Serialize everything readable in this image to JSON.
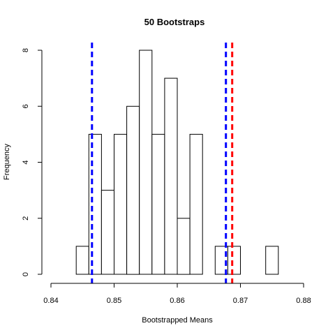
{
  "chart_data": {
    "type": "histogram",
    "title": "50 Bootstraps",
    "xlabel": "Bootstrapped Means",
    "ylabel": "Frequency",
    "xlim": [
      0.84,
      0.88
    ],
    "ylim": [
      0,
      8
    ],
    "x_ticks": [
      "0.84",
      "0.85",
      "0.86",
      "0.87",
      "0.88"
    ],
    "y_ticks": [
      "0",
      "2",
      "4",
      "6",
      "8"
    ],
    "bin_width": 0.002,
    "bins": [
      {
        "start": 0.844,
        "end": 0.846,
        "count": 1
      },
      {
        "start": 0.846,
        "end": 0.848,
        "count": 5
      },
      {
        "start": 0.848,
        "end": 0.85,
        "count": 3
      },
      {
        "start": 0.85,
        "end": 0.852,
        "count": 5
      },
      {
        "start": 0.852,
        "end": 0.854,
        "count": 6
      },
      {
        "start": 0.854,
        "end": 0.856,
        "count": 8
      },
      {
        "start": 0.856,
        "end": 0.858,
        "count": 5
      },
      {
        "start": 0.858,
        "end": 0.86,
        "count": 7
      },
      {
        "start": 0.86,
        "end": 0.862,
        "count": 2
      },
      {
        "start": 0.862,
        "end": 0.864,
        "count": 5
      },
      {
        "start": 0.864,
        "end": 0.866,
        "count": 0
      },
      {
        "start": 0.866,
        "end": 0.868,
        "count": 1
      },
      {
        "start": 0.868,
        "end": 0.87,
        "count": 1
      },
      {
        "start": 0.87,
        "end": 0.872,
        "count": 0
      },
      {
        "start": 0.872,
        "end": 0.874,
        "count": 0
      },
      {
        "start": 0.874,
        "end": 0.876,
        "count": 1
      }
    ],
    "reference_lines": [
      {
        "x": 0.8465,
        "color": "#0000ff",
        "style": "dashed"
      },
      {
        "x": 0.8677,
        "color": "#0000ff",
        "style": "dashed"
      },
      {
        "x": 0.8687,
        "color": "#ff0000",
        "style": "dashed"
      }
    ],
    "grid": false,
    "bar_fill": "#ffffff",
    "bar_stroke": "#000000"
  }
}
